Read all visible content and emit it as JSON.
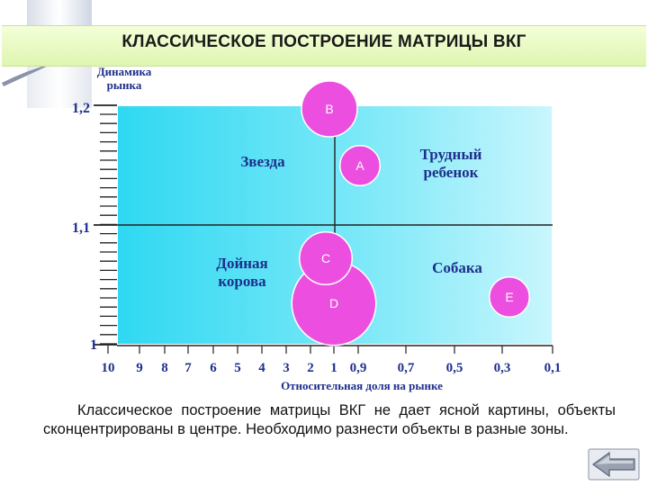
{
  "title": "КЛАССИЧЕСКОЕ ПОСТРОЕНИЕ МАТРИЦЫ ВКГ",
  "chart_data": {
    "type": "scatter",
    "ylabel": "Динамика\nрынка",
    "xlabel": "Относительная доля на рынке",
    "y_ticks": [
      "1,2",
      "1,1",
      "1"
    ],
    "x_ticks": [
      "10",
      "9",
      "8",
      "7",
      "6",
      "5",
      "4",
      "3",
      "2",
      "1",
      "0,9",
      "0,7",
      "0,5",
      "0,3",
      "0,1"
    ],
    "quadrants": [
      {
        "label": "Звезда"
      },
      {
        "label": "Трудный\nребенок"
      },
      {
        "label": "Дойная\nкорова"
      },
      {
        "label": "Собака"
      }
    ],
    "points": [
      {
        "label": "B",
        "x": 1.0,
        "y": 1.2,
        "size": 1.2
      },
      {
        "label": "A",
        "x": 0.98,
        "y": 1.15,
        "size": 0.7
      },
      {
        "label": "C",
        "x": 1.05,
        "y": 1.075,
        "size": 1.1
      },
      {
        "label": "D",
        "x": 1.0,
        "y": 1.035,
        "size": 2.1
      },
      {
        "label": "E",
        "x": 0.3,
        "y": 1.04,
        "size": 0.7
      }
    ],
    "colors": {
      "plot_fill": "#48dcf4",
      "point_fill": "#ec4fe0",
      "label": "#1e2f8c",
      "grid": "#222222"
    }
  },
  "caption": "Классическое построение матрицы ВКГ не дает ясной картины, объекты сконцентрированы в центре. Необходимо разнести объекты в разные зоны.",
  "nav": {
    "icon": "back-arrow-icon"
  }
}
